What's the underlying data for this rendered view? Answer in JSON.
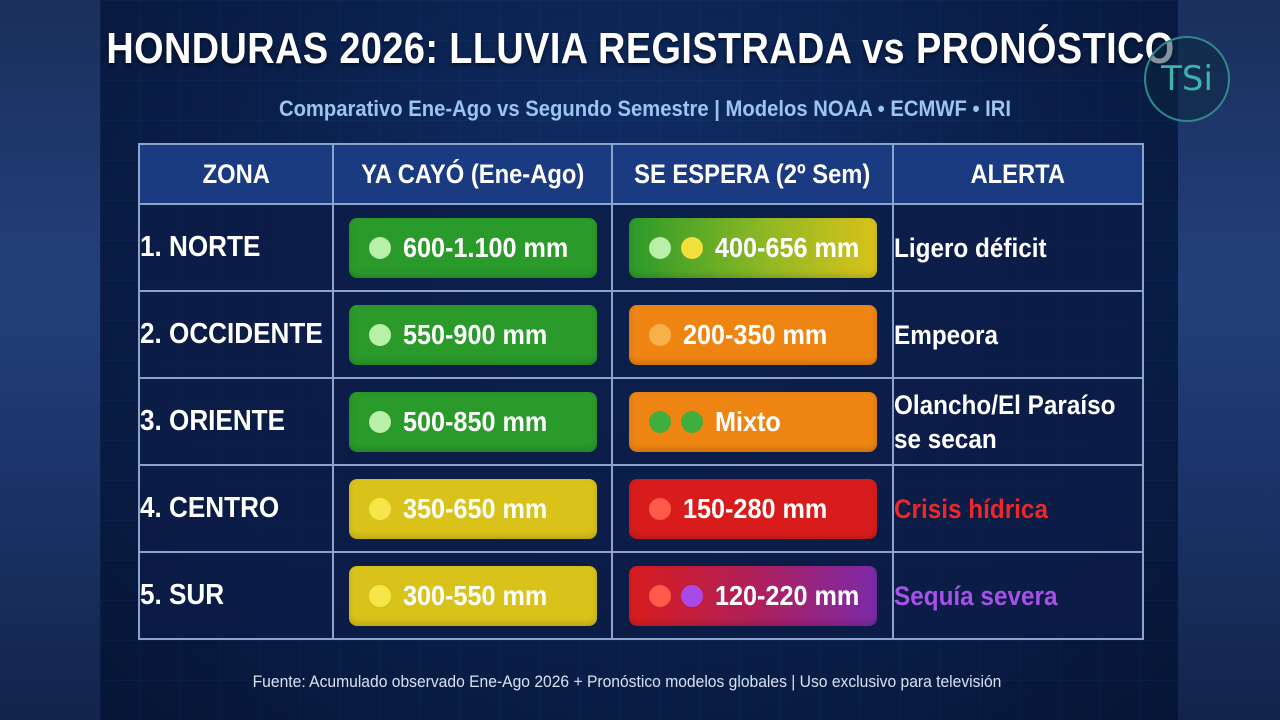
{
  "title": "HONDURAS 2026: LLUVIA REGISTRADA vs PRONÓSTICO",
  "subtitle": "Comparativo Ene-Ago vs Segundo Semestre | Modelos NOAA • ECMWF • IRI",
  "logo": "TSi",
  "colors": {
    "green": "#2a9a2a",
    "yellow": "#d9c21a",
    "orange": "#ee8412",
    "red": "#d81c1c",
    "purple": "#7b2aa8",
    "alert_red": "#ec2828",
    "alert_purple": "#a552e6"
  },
  "table": {
    "headers": [
      "ZONA",
      "YA CAYÓ (Ene-Ago)",
      "SE ESPERA (2º Sem)",
      "ALERTA"
    ],
    "rows": [
      {
        "zona": "1. NORTE",
        "ya_cayo": {
          "text": "600-1.100 mm",
          "color": "green",
          "dots": [
            "#b8f0a8"
          ]
        },
        "se_espera": {
          "text": "400-656 mm",
          "color": "green-yellow",
          "dots": [
            "#b8f0a8",
            "#f4e03a"
          ]
        },
        "alerta": {
          "lines": [
            "Ligero déficit"
          ],
          "color": "#ffffff"
        }
      },
      {
        "zona": "2. OCCIDENTE",
        "ya_cayo": {
          "text": "550-900 mm",
          "color": "green",
          "dots": [
            "#b8f0a8"
          ]
        },
        "se_espera": {
          "text": "200-350 mm",
          "color": "orange",
          "dots": [
            "#f7b04a"
          ]
        },
        "alerta": {
          "lines": [
            "Empeora"
          ],
          "color": "#ffffff"
        }
      },
      {
        "zona": "3. ORIENTE",
        "ya_cayo": {
          "text": "500-850 mm",
          "color": "green",
          "dots": [
            "#b8f0a8"
          ]
        },
        "se_espera": {
          "text": "Mixto",
          "color": "orange",
          "dots": [
            "#3fae3a",
            "#3fae3a"
          ]
        },
        "alerta": {
          "lines": [
            "Olancho/El Paraíso",
            "se secan"
          ],
          "color": "#ffffff"
        }
      },
      {
        "zona": "4. CENTRO",
        "ya_cayo": {
          "text": "350-650 mm",
          "color": "yellow",
          "dots": [
            "#f6e64a"
          ]
        },
        "se_espera": {
          "text": "150-280 mm",
          "color": "red",
          "dots": [
            "#ff5a4a"
          ]
        },
        "alerta": {
          "lines": [
            "Crisis hídrica"
          ],
          "color": "alert_red"
        }
      },
      {
        "zona": "5. SUR",
        "ya_cayo": {
          "text": "300-550 mm",
          "color": "yellow",
          "dots": [
            "#f6e64a"
          ]
        },
        "se_espera": {
          "text": "120-220 mm",
          "color": "red-purple",
          "dots": [
            "#ff5a4a",
            "#a84ae8"
          ]
        },
        "alerta": {
          "lines": [
            "Sequía severa"
          ],
          "color": "alert_purple"
        }
      }
    ]
  },
  "footer": "Fuente: Acumulado observado Ene-Ago 2026 + Pronóstico modelos globales | Uso exclusivo para televisión"
}
